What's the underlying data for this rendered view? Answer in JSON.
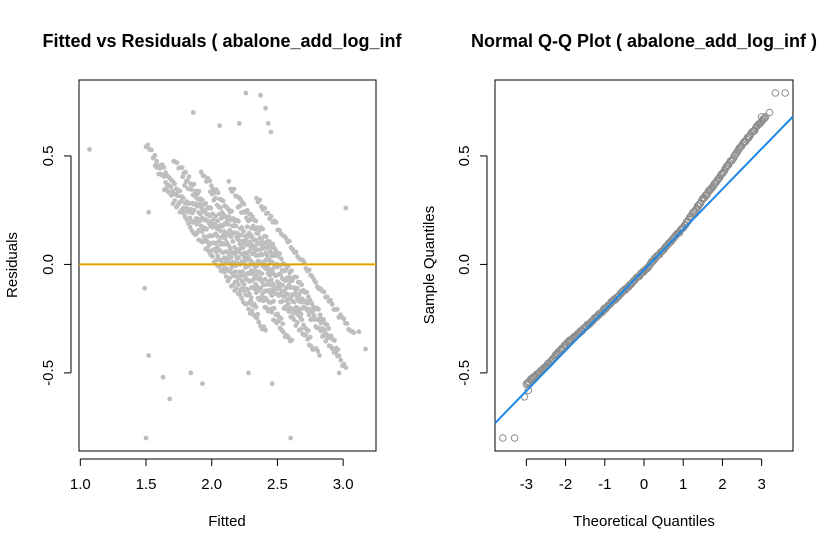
{
  "chart_data": [
    {
      "type": "scatter",
      "title": "Fitted vs Residuals ( abalone_add_log_inf",
      "xlabel": "Fitted",
      "ylabel": "Residuals",
      "xlim": [
        0.99,
        3.25
      ],
      "ylim": [
        -0.86,
        0.85
      ],
      "xticks": [
        1.0,
        1.5,
        2.0,
        2.5,
        3.0
      ],
      "xtick_labels": [
        "1.0",
        "1.5",
        "2.0",
        "2.5",
        "3.0"
      ],
      "yticks": [
        -0.5,
        0.0,
        0.5
      ],
      "ytick_labels": [
        "-0.5",
        "0.0",
        "0.5"
      ],
      "grid": false,
      "point_color": "#BEBEBE",
      "reference_line": {
        "type": "horizontal",
        "y": 0,
        "color": "#E69F00"
      },
      "points": [
        [
          1.07,
          0.53
        ],
        [
          1.5,
          -0.8
        ],
        [
          2.6,
          -0.8
        ],
        [
          1.86,
          0.7
        ],
        [
          2.26,
          0.79
        ],
        [
          2.37,
          0.78
        ],
        [
          2.06,
          0.64
        ],
        [
          2.21,
          0.65
        ],
        [
          2.41,
          0.72
        ],
        [
          2.43,
          0.65
        ],
        [
          2.45,
          0.61
        ],
        [
          3.02,
          0.26
        ],
        [
          3.17,
          -0.39
        ],
        [
          3.12,
          -0.31
        ],
        [
          2.97,
          -0.5
        ],
        [
          1.52,
          0.24
        ],
        [
          1.49,
          -0.11
        ],
        [
          1.52,
          -0.42
        ],
        [
          1.63,
          -0.52
        ],
        [
          1.68,
          -0.62
        ],
        [
          1.84,
          -0.5
        ],
        [
          1.93,
          -0.55
        ],
        [
          2.28,
          -0.5
        ],
        [
          2.46,
          -0.55
        ]
      ],
      "bands": [
        {
          "fitted_start": 1.5,
          "fitted_end": 2.3
        },
        {
          "fitted_start": 1.57,
          "fitted_end": 2.35
        },
        {
          "fitted_start": 1.64,
          "fitted_end": 2.41
        },
        {
          "fitted_start": 1.71,
          "fitted_end": 2.47
        },
        {
          "fitted_start": 1.78,
          "fitted_end": 2.54
        },
        {
          "fitted_start": 1.85,
          "fitted_end": 2.61
        },
        {
          "fitted_start": 1.92,
          "fitted_end": 2.68
        },
        {
          "fitted_start": 1.99,
          "fitted_end": 2.75
        },
        {
          "fitted_start": 2.06,
          "fitted_end": 2.82
        },
        {
          "fitted_start": 2.13,
          "fitted_end": 2.89
        },
        {
          "fitted_start": 2.2,
          "fitted_end": 2.96
        },
        {
          "fitted_start": 2.27,
          "fitted_end": 3.02
        },
        {
          "fitted_start": 2.34,
          "fitted_end": 3.08
        }
      ],
      "band_slope": -0.86
    },
    {
      "type": "scatter",
      "title": "Normal Q-Q Plot ( abalone_add_log_inf )",
      "xlabel": "Theoretical Quantiles",
      "ylabel": "Sample Quantiles",
      "xlim": [
        -3.8,
        3.8
      ],
      "ylim": [
        -0.86,
        0.85
      ],
      "xticks": [
        -3,
        -2,
        -1,
        0,
        1,
        2,
        3
      ],
      "xtick_labels": [
        "-3",
        "-2",
        "-1",
        "0",
        "1",
        "2",
        "3"
      ],
      "yticks": [
        -0.5,
        0.0,
        0.5
      ],
      "ytick_labels": [
        "-0.5",
        "0.0",
        "0.5"
      ],
      "grid": false,
      "point_color": "#8C8C8C",
      "reference_line": {
        "type": "qqline",
        "intercept": -0.025,
        "slope": 0.186,
        "color": "#1E88E5"
      },
      "quantile_curve": [
        [
          -3.4,
          -0.6
        ],
        [
          -3.0,
          -0.55
        ],
        [
          -2.5,
          -0.47
        ],
        [
          -2.0,
          -0.37
        ],
        [
          -1.5,
          -0.29
        ],
        [
          -1.0,
          -0.205
        ],
        [
          -0.5,
          -0.12
        ],
        [
          0.0,
          -0.03
        ],
        [
          0.5,
          0.07
        ],
        [
          1.0,
          0.17
        ],
        [
          1.5,
          0.3
        ],
        [
          2.0,
          0.42
        ],
        [
          2.5,
          0.55
        ],
        [
          3.0,
          0.66
        ],
        [
          3.3,
          0.72
        ]
      ],
      "extreme_points": [
        [
          -3.6,
          -0.8
        ],
        [
          -3.3,
          -0.8
        ],
        [
          -3.05,
          -0.61
        ],
        [
          -2.95,
          -0.58
        ],
        [
          3.2,
          0.7
        ],
        [
          3.35,
          0.79
        ],
        [
          3.6,
          0.79
        ],
        [
          3.0,
          0.68
        ]
      ]
    }
  ]
}
